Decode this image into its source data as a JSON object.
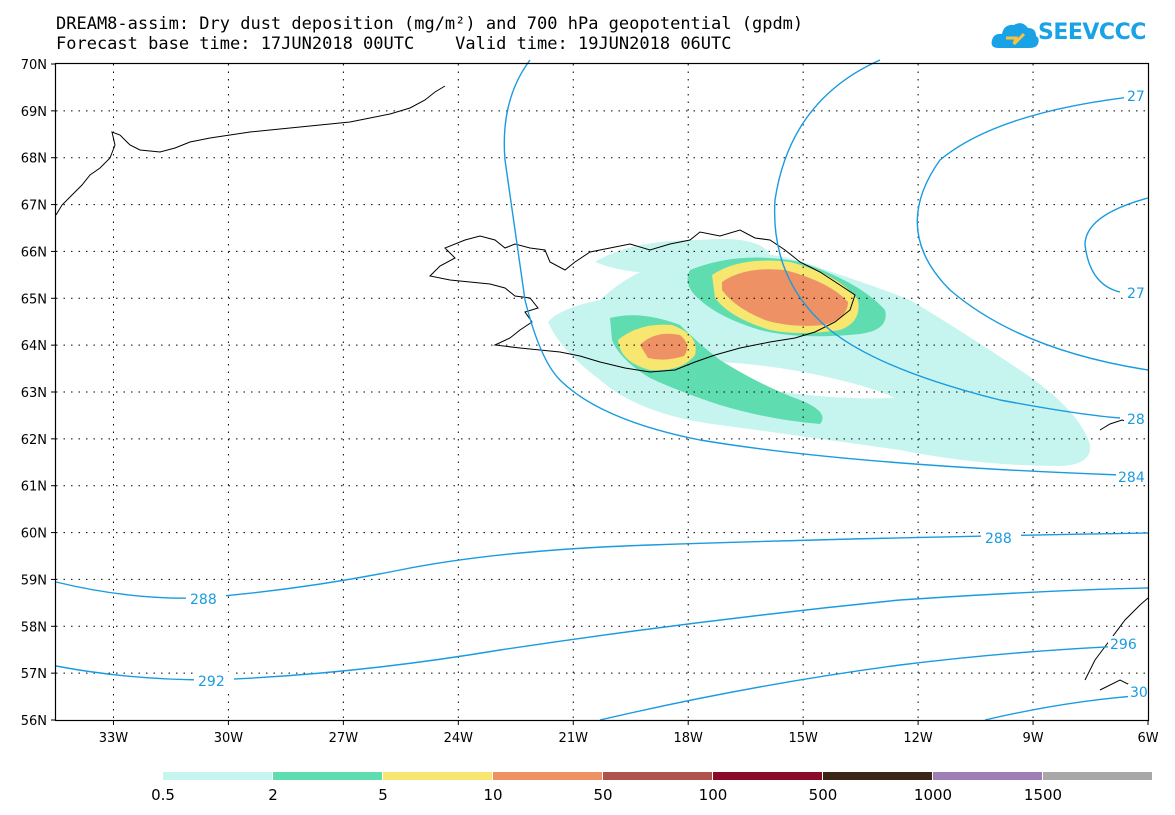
{
  "header": {
    "title_line1": "DREAM8-assim: Dry dust deposition (mg/m²) and 700 hPa geopotential (gpdm)",
    "title_line2": "Forecast base time: 17JUN2018 00UTC    Valid time: 19JUN2018 06UTC"
  },
  "logo": {
    "text": "SEEVCCC",
    "icon": "cloud-icon"
  },
  "map": {
    "lon_range": [
      -34.5,
      -6
    ],
    "lat_range": [
      56,
      70
    ],
    "lat_labels": [
      "70N",
      "69N",
      "68N",
      "67N",
      "66N",
      "65N",
      "64N",
      "63N",
      "62N",
      "61N",
      "60N",
      "59N",
      "58N",
      "57N",
      "56N"
    ],
    "lon_labels": [
      "33W",
      "30W",
      "27W",
      "24W",
      "21W",
      "18W",
      "15W",
      "12W",
      "9W",
      "6W"
    ],
    "contour_labels": [
      "288",
      "292",
      "288",
      "284",
      "28",
      "27",
      "27",
      "296",
      "30"
    ]
  },
  "colorbar": {
    "labels": [
      "0.5",
      "2",
      "5",
      "10",
      "50",
      "100",
      "500",
      "1000",
      "1500"
    ],
    "colors": [
      "#c6f4ee",
      "#5fdcb0",
      "#f7e66f",
      "#ee9266",
      "#b0524c",
      "#8b0a2a",
      "#3b2418",
      "#9e7eb4",
      "#a8a8a8"
    ]
  }
}
